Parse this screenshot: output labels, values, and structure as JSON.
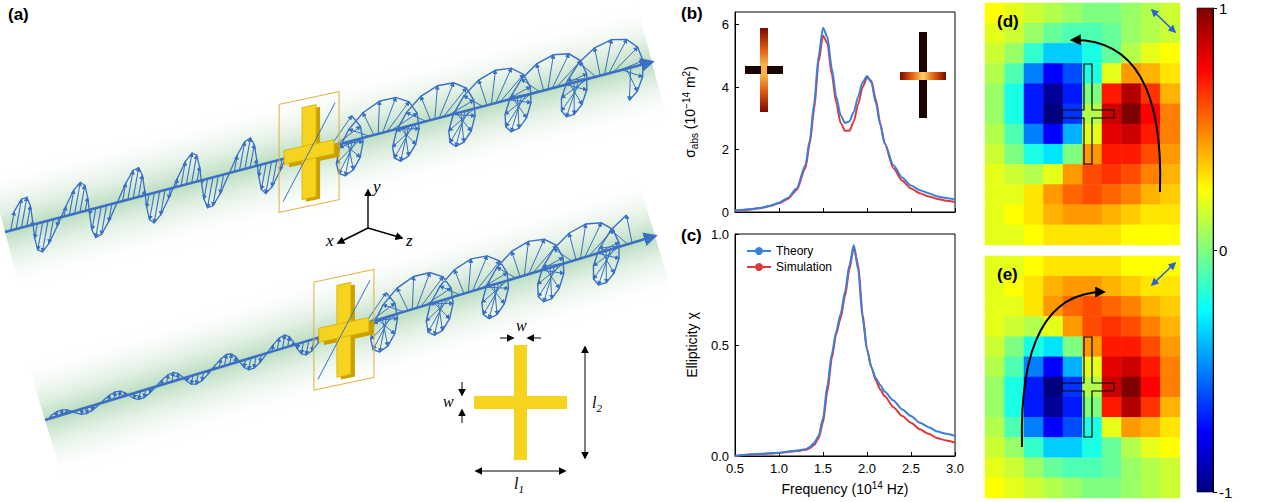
{
  "chart_data": [
    {
      "type": "line",
      "title": "(b)",
      "ylabel": [
        {
          "text": "σ"
        },
        {
          "text": "abs",
          "sub": true
        },
        {
          "text": " (10"
        },
        {
          "text": "−14",
          "sup": true
        },
        {
          "text": " m"
        },
        {
          "text": "2",
          "sup": true
        },
        {
          "text": ")"
        }
      ],
      "x": [
        0.5,
        0.6,
        0.7,
        0.8,
        0.9,
        1.0,
        1.1,
        1.2,
        1.3,
        1.35,
        1.4,
        1.45,
        1.5,
        1.55,
        1.6,
        1.65,
        1.7,
        1.75,
        1.8,
        1.85,
        1.9,
        1.95,
        2.0,
        2.05,
        2.1,
        2.15,
        2.2,
        2.3,
        2.4,
        2.5,
        2.6,
        2.7,
        2.8,
        2.9,
        3.0
      ],
      "series": [
        {
          "name": "Theory",
          "color": "#3b7fdc",
          "values": [
            0.05,
            0.07,
            0.1,
            0.14,
            0.2,
            0.3,
            0.45,
            0.75,
            1.5,
            2.3,
            3.5,
            5.0,
            5.9,
            5.6,
            4.6,
            3.7,
            3.1,
            2.85,
            2.9,
            3.2,
            3.7,
            4.15,
            4.35,
            4.15,
            3.5,
            2.8,
            2.2,
            1.5,
            1.1,
            0.85,
            0.7,
            0.6,
            0.5,
            0.45,
            0.4
          ]
        },
        {
          "name": "Simulation",
          "color": "#e0393b",
          "values": [
            0.04,
            0.06,
            0.09,
            0.13,
            0.19,
            0.28,
            0.42,
            0.7,
            1.4,
            2.2,
            3.3,
            4.8,
            5.65,
            5.4,
            4.4,
            3.5,
            2.85,
            2.6,
            2.6,
            2.9,
            3.45,
            4.0,
            4.3,
            4.2,
            3.6,
            2.85,
            2.2,
            1.4,
            1.0,
            0.75,
            0.6,
            0.5,
            0.42,
            0.36,
            0.32
          ]
        }
      ],
      "xlim": [
        0.5,
        3.0
      ],
      "xticks": [
        0.5,
        {
          "value": 1,
          "label": "1.0"
        },
        1.5,
        {
          "value": 2,
          "label": "2.0"
        },
        2.5,
        {
          "value": 3,
          "label": "3.0"
        }
      ],
      "ylim": [
        0,
        6.4
      ],
      "yticks": [
        0,
        2,
        4,
        6
      ],
      "grid": false,
      "tick_labels": "y"
    },
    {
      "type": "line",
      "title": "(c)",
      "xlabel": [
        {
          "text": "Frequency (10"
        },
        {
          "text": "14",
          "sup": true
        },
        {
          "text": " Hz)"
        }
      ],
      "ylabel": "Ellipticity χ",
      "x": [
        0.5,
        0.6,
        0.7,
        0.8,
        0.9,
        1.0,
        1.1,
        1.2,
        1.3,
        1.35,
        1.4,
        1.45,
        1.5,
        1.55,
        1.6,
        1.65,
        1.7,
        1.75,
        1.8,
        1.85,
        1.9,
        1.95,
        2.0,
        2.05,
        2.1,
        2.15,
        2.2,
        2.3,
        2.4,
        2.5,
        2.6,
        2.7,
        2.8,
        2.9,
        3.0
      ],
      "series": [
        {
          "name": "Theory",
          "color": "#3b7fdc",
          "values": [
            0.0,
            0.005,
            0.008,
            0.01,
            0.012,
            0.015,
            0.02,
            0.025,
            0.03,
            0.04,
            0.06,
            0.09,
            0.17,
            0.32,
            0.46,
            0.56,
            0.64,
            0.74,
            0.86,
            0.95,
            0.84,
            0.62,
            0.48,
            0.4,
            0.35,
            0.32,
            0.29,
            0.25,
            0.21,
            0.18,
            0.15,
            0.13,
            0.11,
            0.1,
            0.09
          ]
        },
        {
          "name": "Simulation",
          "color": "#e0393b",
          "values": [
            0.0,
            0.004,
            0.007,
            0.009,
            0.011,
            0.014,
            0.018,
            0.022,
            0.028,
            0.035,
            0.05,
            0.08,
            0.15,
            0.29,
            0.44,
            0.55,
            0.62,
            0.72,
            0.84,
            0.94,
            0.86,
            0.64,
            0.48,
            0.4,
            0.34,
            0.3,
            0.27,
            0.22,
            0.18,
            0.15,
            0.12,
            0.1,
            0.08,
            0.07,
            0.06
          ]
        }
      ],
      "xlim": [
        0.5,
        3.0
      ],
      "xticks": [
        0.5,
        {
          "value": 1,
          "label": "1.0"
        },
        1.5,
        {
          "value": 2,
          "label": "2.0"
        },
        2.5,
        {
          "value": 3,
          "label": "3.0"
        }
      ],
      "ylim": [
        0,
        1.0
      ],
      "yticks": [
        {
          "value": 0,
          "label": "0.0"
        },
        0.5,
        {
          "value": 1,
          "label": "1.0"
        }
      ],
      "grid": false,
      "legend": "upper left"
    },
    {
      "type": "heatmap",
      "title": "(d)",
      "tick_labels": false,
      "cells": [
        [
          0.25,
          0.2,
          0.15,
          0.1,
          0.05,
          0.0,
          0.0,
          0.05,
          0.1,
          0.15
        ],
        [
          0.2,
          0.15,
          0.05,
          -0.05,
          -0.1,
          -0.1,
          -0.05,
          0.05,
          0.1,
          0.15
        ],
        [
          0.15,
          0.05,
          -0.15,
          -0.35,
          -0.35,
          -0.2,
          -0.05,
          0.1,
          0.2,
          0.25
        ],
        [
          0.1,
          -0.1,
          -0.5,
          -0.75,
          -0.6,
          -0.2,
          0.2,
          0.45,
          0.4,
          0.3
        ],
        [
          0.05,
          -0.2,
          -0.7,
          -0.95,
          -0.7,
          0.0,
          0.7,
          0.9,
          0.65,
          0.4
        ],
        [
          0.05,
          -0.2,
          -0.7,
          -1.0,
          -0.65,
          0.1,
          0.85,
          1.0,
          0.75,
          0.5
        ],
        [
          0.1,
          -0.1,
          -0.5,
          -0.75,
          -0.4,
          0.2,
          0.8,
          0.85,
          0.7,
          0.5
        ],
        [
          0.15,
          0.0,
          -0.2,
          -0.3,
          0.0,
          0.45,
          0.7,
          0.7,
          0.6,
          0.45
        ],
        [
          0.2,
          0.15,
          0.1,
          0.2,
          0.45,
          0.6,
          0.65,
          0.6,
          0.5,
          0.4
        ],
        [
          0.2,
          0.2,
          0.3,
          0.45,
          0.55,
          0.6,
          0.55,
          0.5,
          0.4,
          0.35
        ],
        [
          0.2,
          0.25,
          0.3,
          0.4,
          0.45,
          0.45,
          0.4,
          0.35,
          0.3,
          0.3
        ],
        [
          0.2,
          0.2,
          0.25,
          0.3,
          0.3,
          0.3,
          0.3,
          0.25,
          0.25,
          0.25
        ]
      ]
    },
    {
      "type": "heatmap",
      "title": "(e)",
      "tick_labels": false,
      "cells": [
        [
          0.2,
          0.2,
          0.25,
          0.3,
          0.3,
          0.3,
          0.3,
          0.25,
          0.25,
          0.25
        ],
        [
          0.2,
          0.25,
          0.3,
          0.4,
          0.45,
          0.45,
          0.4,
          0.35,
          0.3,
          0.3
        ],
        [
          0.2,
          0.2,
          0.3,
          0.45,
          0.55,
          0.6,
          0.55,
          0.5,
          0.4,
          0.35
        ],
        [
          0.2,
          0.15,
          0.1,
          0.2,
          0.45,
          0.6,
          0.65,
          0.6,
          0.5,
          0.4
        ],
        [
          0.15,
          0.0,
          -0.2,
          -0.3,
          0.0,
          0.45,
          0.7,
          0.7,
          0.6,
          0.45
        ],
        [
          0.1,
          -0.1,
          -0.5,
          -0.75,
          -0.4,
          0.2,
          0.8,
          0.85,
          0.7,
          0.5
        ],
        [
          0.05,
          -0.2,
          -0.7,
          -1.0,
          -0.65,
          0.1,
          0.85,
          1.0,
          0.75,
          0.5
        ],
        [
          0.05,
          -0.2,
          -0.7,
          -0.95,
          -0.7,
          0.0,
          0.7,
          0.9,
          0.65,
          0.4
        ],
        [
          0.1,
          -0.1,
          -0.5,
          -0.75,
          -0.6,
          -0.2,
          0.2,
          0.45,
          0.4,
          0.3
        ],
        [
          0.15,
          0.05,
          -0.15,
          -0.35,
          -0.35,
          -0.2,
          -0.05,
          0.1,
          0.2,
          0.25
        ],
        [
          0.2,
          0.15,
          0.05,
          -0.05,
          -0.1,
          -0.1,
          -0.05,
          0.05,
          0.1,
          0.15
        ],
        [
          0.25,
          0.2,
          0.15,
          0.1,
          0.05,
          0.0,
          0.0,
          0.05,
          0.1,
          0.15
        ]
      ],
      "colorbar": {
        "range": [
          -1,
          1
        ],
        "ticks": [
          -1,
          0,
          1
        ]
      }
    }
  ],
  "schematic": {
    "title": "(a)",
    "axes": [
      "x",
      "y",
      "z"
    ],
    "dimensions": [
      {
        "text": "w"
      },
      {
        "text": "w"
      },
      {
        "text": "l",
        "sub": "1"
      },
      {
        "text": "l",
        "sub": "2"
      }
    ]
  }
}
